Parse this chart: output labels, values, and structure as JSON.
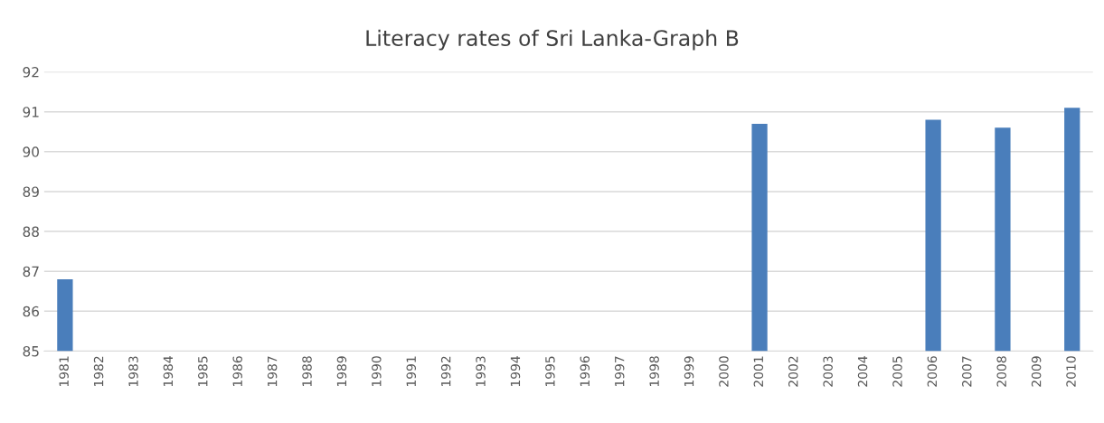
{
  "chart_data": {
    "type": "bar",
    "title": "Literacy rates of Sri Lanka-Graph B",
    "categories": [
      "1981",
      "1982",
      "1983",
      "1984",
      "1985",
      "1986",
      "1987",
      "1988",
      "1989",
      "1990",
      "1991",
      "1992",
      "1993",
      "1994",
      "1995",
      "1996",
      "1997",
      "1998",
      "1999",
      "2000",
      "2001",
      "2002",
      "2003",
      "2004",
      "2005",
      "2006",
      "2007",
      "2008",
      "2009",
      "2010"
    ],
    "values": [
      86.8,
      null,
      null,
      null,
      null,
      null,
      null,
      null,
      null,
      null,
      null,
      null,
      null,
      null,
      null,
      null,
      null,
      null,
      null,
      null,
      90.7,
      null,
      null,
      null,
      null,
      90.8,
      null,
      90.6,
      null,
      91.1
    ],
    "color": "#4a7ebb",
    "ylim": [
      85,
      92
    ],
    "yticks": [
      85,
      86,
      87,
      88,
      89,
      90,
      91,
      92
    ],
    "grid": "y",
    "legend": false
  }
}
